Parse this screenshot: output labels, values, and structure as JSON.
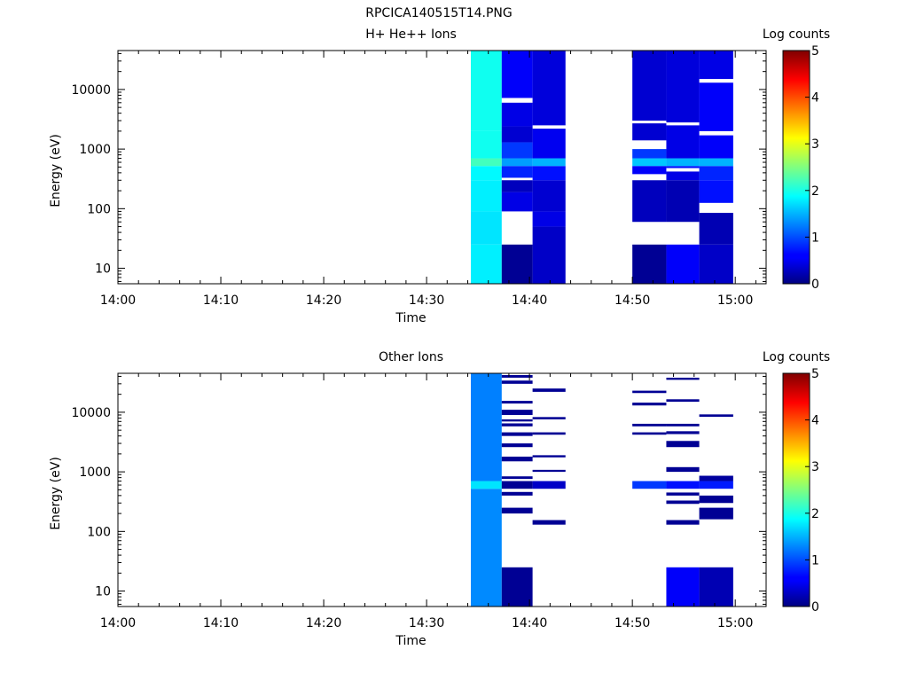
{
  "figure_title": "RPCICA140515T14.PNG",
  "chart_data": [
    {
      "type": "heatmap",
      "title": "H+ He++ Ions",
      "xlabel": "Time",
      "ylabel": "Energy (eV)",
      "x_ticks": [
        "14:00",
        "14:10",
        "14:20",
        "14:30",
        "14:40",
        "14:50",
        "15:00"
      ],
      "x_range": [
        "14:00",
        "15:03"
      ],
      "y_scale": "log",
      "y_ticks": [
        10,
        100,
        1000,
        10000
      ],
      "y_tick_labels": [
        "10",
        "100",
        "1000",
        "10000"
      ],
      "y_range": [
        5.5,
        45000
      ],
      "colorbar": {
        "label": "Log counts",
        "range": [
          0,
          5
        ],
        "ticks": [
          0,
          1,
          2,
          3,
          4,
          5
        ],
        "tick_labels": [
          "0",
          "1",
          "2",
          "3",
          "4",
          "5"
        ],
        "colormap": "jet"
      },
      "columns": [
        {
          "start": "14:34.3",
          "end": "14:37.3",
          "segments": [
            {
              "e_lo": 5.5,
              "e_hi": 25,
              "v": 1.8
            },
            {
              "e_lo": 25,
              "e_hi": 90,
              "v": 1.75
            },
            {
              "e_lo": 90,
              "e_hi": 300,
              "v": 1.8
            },
            {
              "e_lo": 300,
              "e_hi": 520,
              "v": 1.85
            },
            {
              "e_lo": 520,
              "e_hi": 700,
              "v": 2.2
            },
            {
              "e_lo": 700,
              "e_hi": 2000,
              "v": 1.95
            },
            {
              "e_lo": 2000,
              "e_hi": 45000,
              "v": 1.95
            }
          ]
        },
        {
          "start": "14:37.3",
          "end": "14:40.3",
          "segments": [
            {
              "e_lo": 5.5,
              "e_hi": 25,
              "v": 0.1
            },
            {
              "e_lo": 90,
              "e_hi": 190,
              "v": 0.5
            },
            {
              "e_lo": 190,
              "e_hi": 300,
              "v": 0.3
            },
            {
              "e_lo": 330,
              "e_hi": 520,
              "v": 0.8
            },
            {
              "e_lo": 520,
              "e_hi": 700,
              "v": 1.4
            },
            {
              "e_lo": 700,
              "e_hi": 1300,
              "v": 0.9
            },
            {
              "e_lo": 1300,
              "e_hi": 2400,
              "v": 0.4
            },
            {
              "e_lo": 2400,
              "e_hi": 6000,
              "v": 0.5
            },
            {
              "e_lo": 7200,
              "e_hi": 45000,
              "v": 0.6
            }
          ]
        },
        {
          "start": "14:40.3",
          "end": "14:43.5",
          "segments": [
            {
              "e_lo": 5.5,
              "e_hi": 50,
              "v": 0.35
            },
            {
              "e_lo": 50,
              "e_hi": 90,
              "v": 0.5
            },
            {
              "e_lo": 90,
              "e_hi": 300,
              "v": 0.4
            },
            {
              "e_lo": 300,
              "e_hi": 520,
              "v": 0.7
            },
            {
              "e_lo": 520,
              "e_hi": 700,
              "v": 1.5
            },
            {
              "e_lo": 700,
              "e_hi": 2200,
              "v": 0.55
            },
            {
              "e_lo": 2500,
              "e_hi": 45000,
              "v": 0.45
            }
          ]
        },
        {
          "start": "14:50.0",
          "end": "14:53.3",
          "segments": [
            {
              "e_lo": 5.5,
              "e_hi": 25,
              "v": 0.1
            },
            {
              "e_lo": 60,
              "e_hi": 300,
              "v": 0.3
            },
            {
              "e_lo": 380,
              "e_hi": 520,
              "v": 0.6
            },
            {
              "e_lo": 520,
              "e_hi": 700,
              "v": 1.6
            },
            {
              "e_lo": 700,
              "e_hi": 1000,
              "v": 0.9
            },
            {
              "e_lo": 1400,
              "e_hi": 2700,
              "v": 0.4
            },
            {
              "e_lo": 3000,
              "e_hi": 45000,
              "v": 0.4
            }
          ]
        },
        {
          "start": "14:53.3",
          "end": "14:56.5",
          "segments": [
            {
              "e_lo": 5.5,
              "e_hi": 25,
              "v": 0.6
            },
            {
              "e_lo": 60,
              "e_hi": 300,
              "v": 0.25
            },
            {
              "e_lo": 300,
              "e_hi": 420,
              "v": 0.5
            },
            {
              "e_lo": 480,
              "e_hi": 520,
              "v": 0.7
            },
            {
              "e_lo": 520,
              "e_hi": 700,
              "v": 1.5
            },
            {
              "e_lo": 700,
              "e_hi": 2500,
              "v": 0.5
            },
            {
              "e_lo": 2800,
              "e_hi": 45000,
              "v": 0.45
            }
          ]
        },
        {
          "start": "14:56.5",
          "end": "14:59.8",
          "segments": [
            {
              "e_lo": 5.5,
              "e_hi": 25,
              "v": 0.35
            },
            {
              "e_lo": 25,
              "e_hi": 85,
              "v": 0.25
            },
            {
              "e_lo": 125,
              "e_hi": 300,
              "v": 0.7
            },
            {
              "e_lo": 300,
              "e_hi": 520,
              "v": 0.8
            },
            {
              "e_lo": 520,
              "e_hi": 700,
              "v": 1.5
            },
            {
              "e_lo": 700,
              "e_hi": 1700,
              "v": 0.6
            },
            {
              "e_lo": 2000,
              "e_hi": 13000,
              "v": 0.6
            },
            {
              "e_lo": 15000,
              "e_hi": 45000,
              "v": 0.5
            }
          ]
        }
      ]
    },
    {
      "type": "heatmap",
      "title": "Other Ions",
      "xlabel": "Time",
      "ylabel": "Energy (eV)",
      "x_ticks": [
        "14:00",
        "14:10",
        "14:20",
        "14:30",
        "14:40",
        "14:50",
        "15:00"
      ],
      "x_range": [
        "14:00",
        "15:03"
      ],
      "y_scale": "log",
      "y_ticks": [
        10,
        100,
        1000,
        10000
      ],
      "y_tick_labels": [
        "10",
        "100",
        "1000",
        "10000"
      ],
      "y_range": [
        5.5,
        45000
      ],
      "colorbar": {
        "label": "Log counts",
        "range": [
          0,
          5
        ],
        "ticks": [
          0,
          1,
          2,
          3,
          4,
          5
        ],
        "tick_labels": [
          "0",
          "1",
          "2",
          "3",
          "4",
          "5"
        ],
        "colormap": "jet"
      },
      "columns": [
        {
          "start": "14:34.3",
          "end": "14:37.3",
          "segments": [
            {
              "e_lo": 5.5,
              "e_hi": 520,
              "v": 1.3
            },
            {
              "e_lo": 520,
              "e_hi": 700,
              "v": 1.75
            },
            {
              "e_lo": 700,
              "e_hi": 45000,
              "v": 1.25
            }
          ]
        },
        {
          "start": "14:37.3",
          "end": "14:40.3",
          "segments": [
            {
              "e_lo": 5.5,
              "e_hi": 25,
              "v": 0.1
            },
            {
              "e_lo": 200,
              "e_hi": 250,
              "v": 0.1
            },
            {
              "e_lo": 400,
              "e_hi": 460,
              "v": 0.1
            },
            {
              "e_lo": 520,
              "e_hi": 700,
              "v": 0.1
            },
            {
              "e_lo": 760,
              "e_hi": 840,
              "v": 0.1
            },
            {
              "e_lo": 1500,
              "e_hi": 1800,
              "v": 0.1
            },
            {
              "e_lo": 2600,
              "e_hi": 3000,
              "v": 0.1
            },
            {
              "e_lo": 4000,
              "e_hi": 4600,
              "v": 0.1
            },
            {
              "e_lo": 5800,
              "e_hi": 6500,
              "v": 0.1
            },
            {
              "e_lo": 7000,
              "e_hi": 7600,
              "v": 0.1
            },
            {
              "e_lo": 9000,
              "e_hi": 11000,
              "v": 0.1
            },
            {
              "e_lo": 14000,
              "e_hi": 15500,
              "v": 0.1
            },
            {
              "e_lo": 30000,
              "e_hi": 34000,
              "v": 0.1
            },
            {
              "e_lo": 38000,
              "e_hi": 42000,
              "v": 0.1
            }
          ]
        },
        {
          "start": "14:40.3",
          "end": "14:43.5",
          "segments": [
            {
              "e_lo": 130,
              "e_hi": 155,
              "v": 0.1
            },
            {
              "e_lo": 520,
              "e_hi": 700,
              "v": 0.35
            },
            {
              "e_lo": 1000,
              "e_hi": 1080,
              "v": 0.1
            },
            {
              "e_lo": 1750,
              "e_hi": 1900,
              "v": 0.1
            },
            {
              "e_lo": 4200,
              "e_hi": 4600,
              "v": 0.1
            },
            {
              "e_lo": 7600,
              "e_hi": 8300,
              "v": 0.1
            },
            {
              "e_lo": 22000,
              "e_hi": 25000,
              "v": 0.1
            }
          ]
        },
        {
          "start": "14:50.0",
          "end": "14:53.3",
          "segments": [
            {
              "e_lo": 520,
              "e_hi": 700,
              "v": 0.9
            },
            {
              "e_lo": 4200,
              "e_hi": 4600,
              "v": 0.1
            },
            {
              "e_lo": 5800,
              "e_hi": 6400,
              "v": 0.1
            },
            {
              "e_lo": 13000,
              "e_hi": 14500,
              "v": 0.1
            },
            {
              "e_lo": 21000,
              "e_hi": 23000,
              "v": 0.1
            }
          ]
        },
        {
          "start": "14:53.3",
          "end": "14:56.5",
          "segments": [
            {
              "e_lo": 5.5,
              "e_hi": 25,
              "v": 0.6
            },
            {
              "e_lo": 130,
              "e_hi": 155,
              "v": 0.1
            },
            {
              "e_lo": 290,
              "e_hi": 330,
              "v": 0.1
            },
            {
              "e_lo": 400,
              "e_hi": 450,
              "v": 0.1
            },
            {
              "e_lo": 520,
              "e_hi": 700,
              "v": 0.7
            },
            {
              "e_lo": 1000,
              "e_hi": 1200,
              "v": 0.1
            },
            {
              "e_lo": 2600,
              "e_hi": 3300,
              "v": 0.1
            },
            {
              "e_lo": 4300,
              "e_hi": 4800,
              "v": 0.1
            },
            {
              "e_lo": 5800,
              "e_hi": 6400,
              "v": 0.1
            },
            {
              "e_lo": 15000,
              "e_hi": 16500,
              "v": 0.1
            },
            {
              "e_lo": 35000,
              "e_hi": 38000,
              "v": 0.1
            }
          ]
        },
        {
          "start": "14:56.5",
          "end": "14:59.8",
          "segments": [
            {
              "e_lo": 5.5,
              "e_hi": 25,
              "v": 0.25
            },
            {
              "e_lo": 160,
              "e_hi": 250,
              "v": 0.1
            },
            {
              "e_lo": 300,
              "e_hi": 400,
              "v": 0.1
            },
            {
              "e_lo": 520,
              "e_hi": 700,
              "v": 0.75
            },
            {
              "e_lo": 700,
              "e_hi": 860,
              "v": 0.15
            },
            {
              "e_lo": 8400,
              "e_hi": 9200,
              "v": 0.1
            }
          ]
        }
      ]
    }
  ]
}
